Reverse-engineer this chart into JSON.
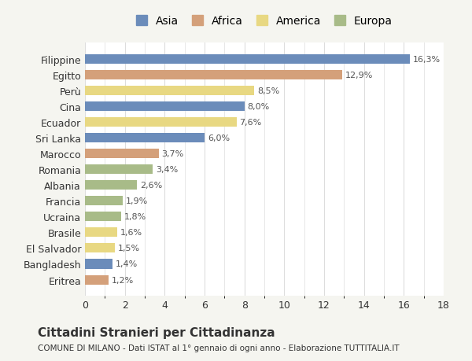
{
  "categories": [
    "Eritrea",
    "Bangladesh",
    "El Salvador",
    "Brasile",
    "Ucraina",
    "Francia",
    "Albania",
    "Romania",
    "Marocco",
    "Sri Lanka",
    "Ecuador",
    "Cina",
    "Perù",
    "Egitto",
    "Filippine"
  ],
  "values": [
    1.2,
    1.4,
    1.5,
    1.6,
    1.8,
    1.9,
    2.6,
    3.4,
    3.7,
    6.0,
    7.6,
    8.0,
    8.5,
    12.9,
    16.3
  ],
  "labels": [
    "1,2%",
    "1,4%",
    "1,5%",
    "1,6%",
    "1,8%",
    "1,9%",
    "2,6%",
    "3,4%",
    "3,7%",
    "6,0%",
    "7,6%",
    "8,0%",
    "8,5%",
    "12,9%",
    "16,3%"
  ],
  "continents": [
    "Africa",
    "Asia",
    "America",
    "America",
    "Europa",
    "Europa",
    "Europa",
    "Europa",
    "Africa",
    "Asia",
    "America",
    "Asia",
    "America",
    "Africa",
    "Asia"
  ],
  "colors": {
    "Asia": "#6b8cba",
    "Africa": "#d4a07a",
    "America": "#e8d882",
    "Europa": "#a8bb88"
  },
  "legend_order": [
    "Asia",
    "Africa",
    "America",
    "Europa"
  ],
  "xlim": [
    0,
    18
  ],
  "xticks": [
    0,
    2,
    4,
    6,
    8,
    10,
    12,
    14,
    16,
    18
  ],
  "title_main": "Cittadini Stranieri per Cittadinanza",
  "title_sub": "COMUNE DI MILANO - Dati ISTAT al 1° gennaio di ogni anno - Elaborazione TUTTITALIA.IT",
  "bg_color": "#f5f5f0",
  "bar_bg_color": "#ffffff",
  "grid_color": "#dddddd",
  "text_color": "#333333",
  "label_color": "#555555"
}
